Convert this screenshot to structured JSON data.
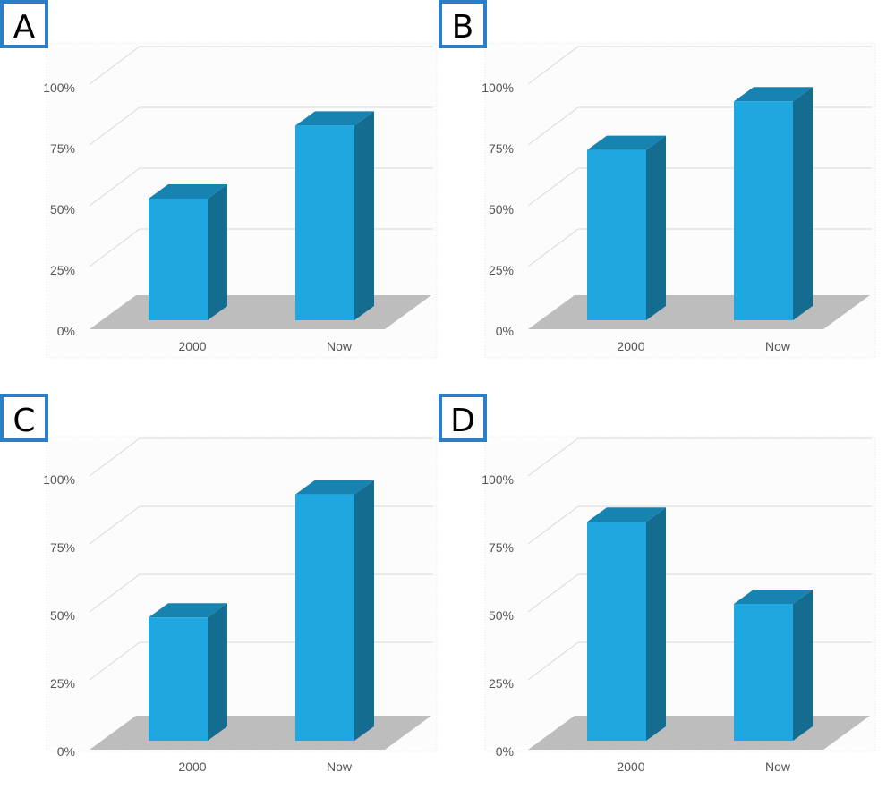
{
  "colors": {
    "bar_front": "#1fa8e0",
    "bar_side": "#146d90",
    "bar_top": "#1683b0",
    "floor": "#bdbdbd",
    "grid": "#d9d9d9",
    "label_border": "#2e7ec6"
  },
  "chart_data": [
    {
      "type": "bar",
      "panel_label": "A",
      "categories": [
        "2000",
        "Now"
      ],
      "values": [
        50,
        80
      ],
      "yticks": [
        "0%",
        "25%",
        "50%",
        "75%",
        "100%"
      ],
      "ylim": [
        0,
        100
      ],
      "title": "",
      "xlabel": "",
      "ylabel": ""
    },
    {
      "type": "bar",
      "panel_label": "B",
      "categories": [
        "2000",
        "Now"
      ],
      "values": [
        70,
        90
      ],
      "yticks": [
        "0%",
        "25%",
        "50%",
        "75%",
        "100%"
      ],
      "ylim": [
        0,
        100
      ],
      "title": "",
      "xlabel": "",
      "ylabel": ""
    },
    {
      "type": "bar",
      "panel_label": "C",
      "categories": [
        "2000",
        "Now"
      ],
      "values": [
        45,
        90
      ],
      "yticks": [
        "0%",
        "25%",
        "50%",
        "75%",
        "100%"
      ],
      "ylim": [
        0,
        100
      ],
      "title": "",
      "xlabel": "",
      "ylabel": ""
    },
    {
      "type": "bar",
      "panel_label": "D",
      "categories": [
        "2000",
        "Now"
      ],
      "values": [
        80,
        50
      ],
      "yticks": [
        "0%",
        "25%",
        "50%",
        "75%",
        "100%"
      ],
      "ylim": [
        0,
        100
      ],
      "title": "",
      "xlabel": "",
      "ylabel": ""
    }
  ]
}
